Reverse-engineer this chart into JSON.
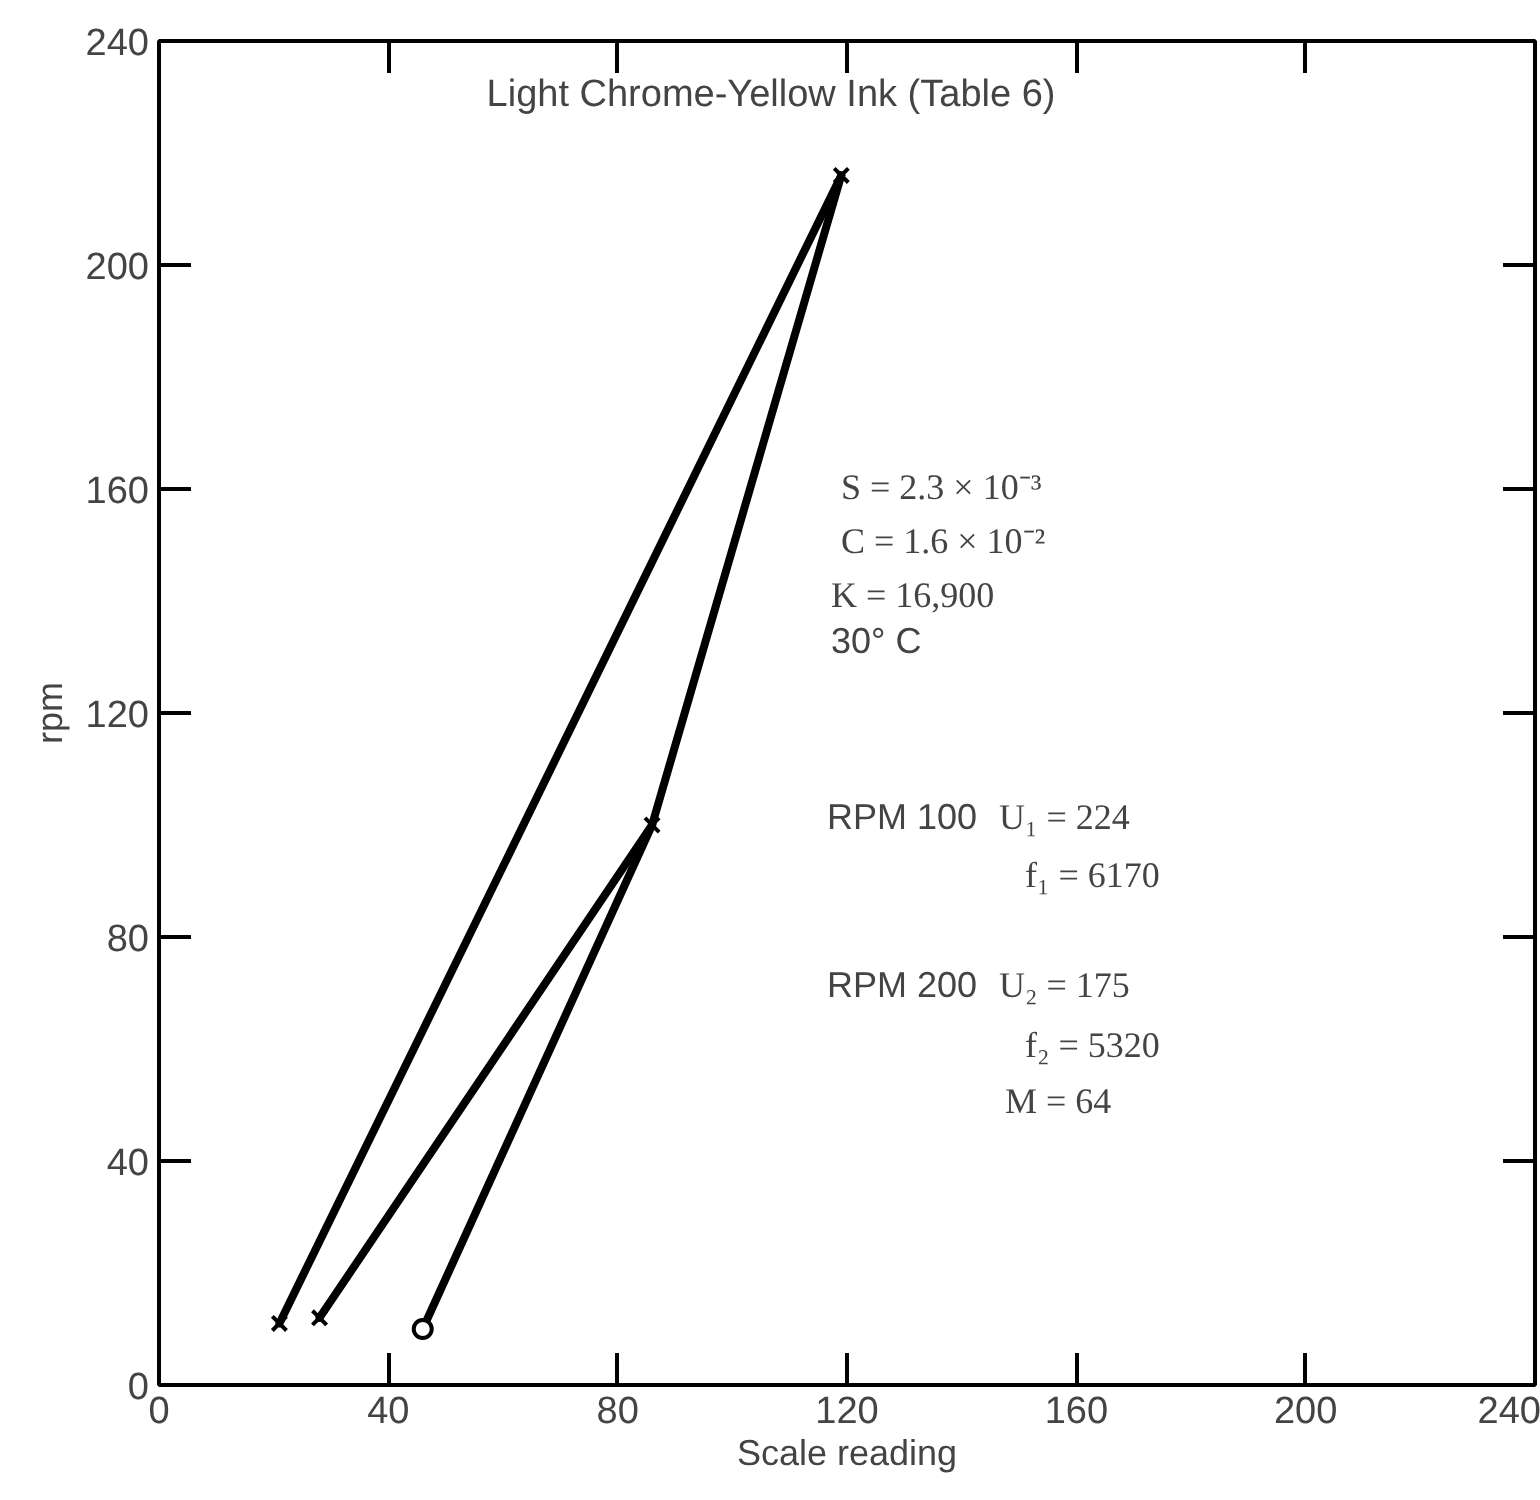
{
  "chart_data": {
    "type": "line",
    "title": "Light Chrome-Yellow Ink (Table 6)",
    "xlabel": "Scale reading",
    "ylabel": "rpm",
    "xlim": [
      0,
      240
    ],
    "ylim": [
      0,
      240
    ],
    "xticks": [
      0,
      40,
      80,
      120,
      160,
      200,
      240
    ],
    "yticks": [
      0,
      40,
      80,
      120,
      160,
      200,
      240
    ],
    "grid": false,
    "line_style": "solid",
    "marker": "none",
    "series": [
      {
        "color": "#000000",
        "x": [
          21,
          119
        ],
        "values": [
          11,
          216
        ]
      },
      {
        "color": "#000000",
        "x": [
          119,
          86
        ],
        "values": [
          216,
          100
        ]
      },
      {
        "color": "#000000",
        "x": [
          28,
          86
        ],
        "values": [
          12,
          100
        ]
      },
      {
        "color": "#000000",
        "x": [
          86,
          46
        ],
        "values": [
          100,
          10
        ]
      },
      {
        "type": "scatter",
        "marker": "cross",
        "color": "#000000",
        "x": [
          21,
          28,
          86,
          119
        ],
        "values": [
          11,
          12,
          100,
          216
        ]
      },
      {
        "type": "scatter",
        "marker": "circle",
        "color": "#000000",
        "x": [
          46
        ],
        "values": [
          10
        ]
      }
    ],
    "annotations": [
      "S = 2.3 × 10⁻³",
      "C = 1.6 × 10⁻²",
      "K = 16,900",
      "30° C",
      "RPM 100",
      "U₁ = 224",
      "f₁ = 6170",
      "RPM 200",
      "U₂ = 175",
      "f₂ = 5320",
      "M = 64"
    ]
  }
}
